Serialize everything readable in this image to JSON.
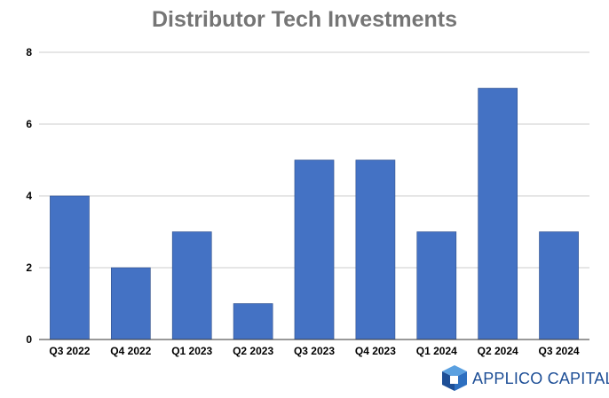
{
  "chart_data": {
    "type": "bar",
    "title": "Distributor Tech Investments",
    "xlabel": "",
    "ylabel": "",
    "categories": [
      "Q3 2022",
      "Q4 2022",
      "Q1 2023",
      "Q2 2023",
      "Q3 2023",
      "Q4 2023",
      "Q1 2024",
      "Q2 2024",
      "Q3 2024"
    ],
    "values": [
      4,
      2,
      3,
      1,
      5,
      5,
      3,
      7,
      3
    ],
    "ylim": [
      0,
      8
    ],
    "yticks": [
      0,
      2,
      4,
      6,
      8
    ],
    "grid": true,
    "legend": "none",
    "bar_color": "#4472c4"
  },
  "branding": {
    "logo_text": "APPLICO CAPITAL",
    "logo_color": "#1d4e96"
  }
}
